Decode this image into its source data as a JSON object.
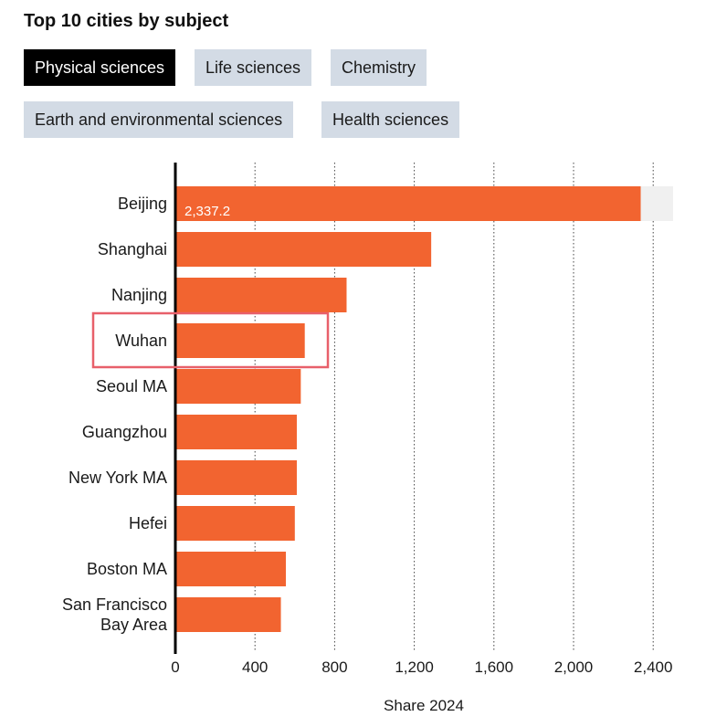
{
  "header": {
    "title": "Top 10 cities by subject"
  },
  "tabs": [
    {
      "label": "Physical sciences",
      "active": true
    },
    {
      "label": "Life sciences",
      "active": false
    },
    {
      "label": "Chemistry",
      "active": false
    },
    {
      "label": "Earth and environmental sciences",
      "active": false
    },
    {
      "label": "Health sciences",
      "active": false
    }
  ],
  "colors": {
    "bar": "#f26430",
    "bar_track": "#f0f0f0",
    "highlight": "#e8606a",
    "tab_active_bg": "#000000",
    "tab_bg": "#d3dbe5"
  },
  "chart_data": {
    "type": "bar",
    "orientation": "horizontal",
    "categories": [
      "Beijing",
      "Shanghai",
      "Nanjing",
      "Wuhan",
      "Seoul MA",
      "Guangzhou",
      "New York MA",
      "Hefei",
      "Boston MA",
      "San Francisco Bay Area"
    ],
    "category_lines": [
      [
        "Beijing"
      ],
      [
        "Shanghai"
      ],
      [
        "Nanjing"
      ],
      [
        "Wuhan"
      ],
      [
        "Seoul MA"
      ],
      [
        "Guangzhou"
      ],
      [
        "New York MA"
      ],
      [
        "Hefei"
      ],
      [
        "Boston MA"
      ],
      [
        "San Francisco",
        "Bay Area"
      ]
    ],
    "values": [
      2337.2,
      1285,
      860,
      650,
      630,
      610,
      610,
      600,
      555,
      530
    ],
    "data_labels": [
      "2,337.2"
    ],
    "xlim": [
      0,
      2500
    ],
    "ticks": [
      0,
      400,
      800,
      1200,
      1600,
      2000,
      2400
    ],
    "tick_labels": [
      "0",
      "400",
      "800",
      "1,200",
      "1,600",
      "2,000",
      "2,400"
    ],
    "xlabel": "Share 2024",
    "highlighted": "Wuhan",
    "grid": "vertical dotted"
  }
}
